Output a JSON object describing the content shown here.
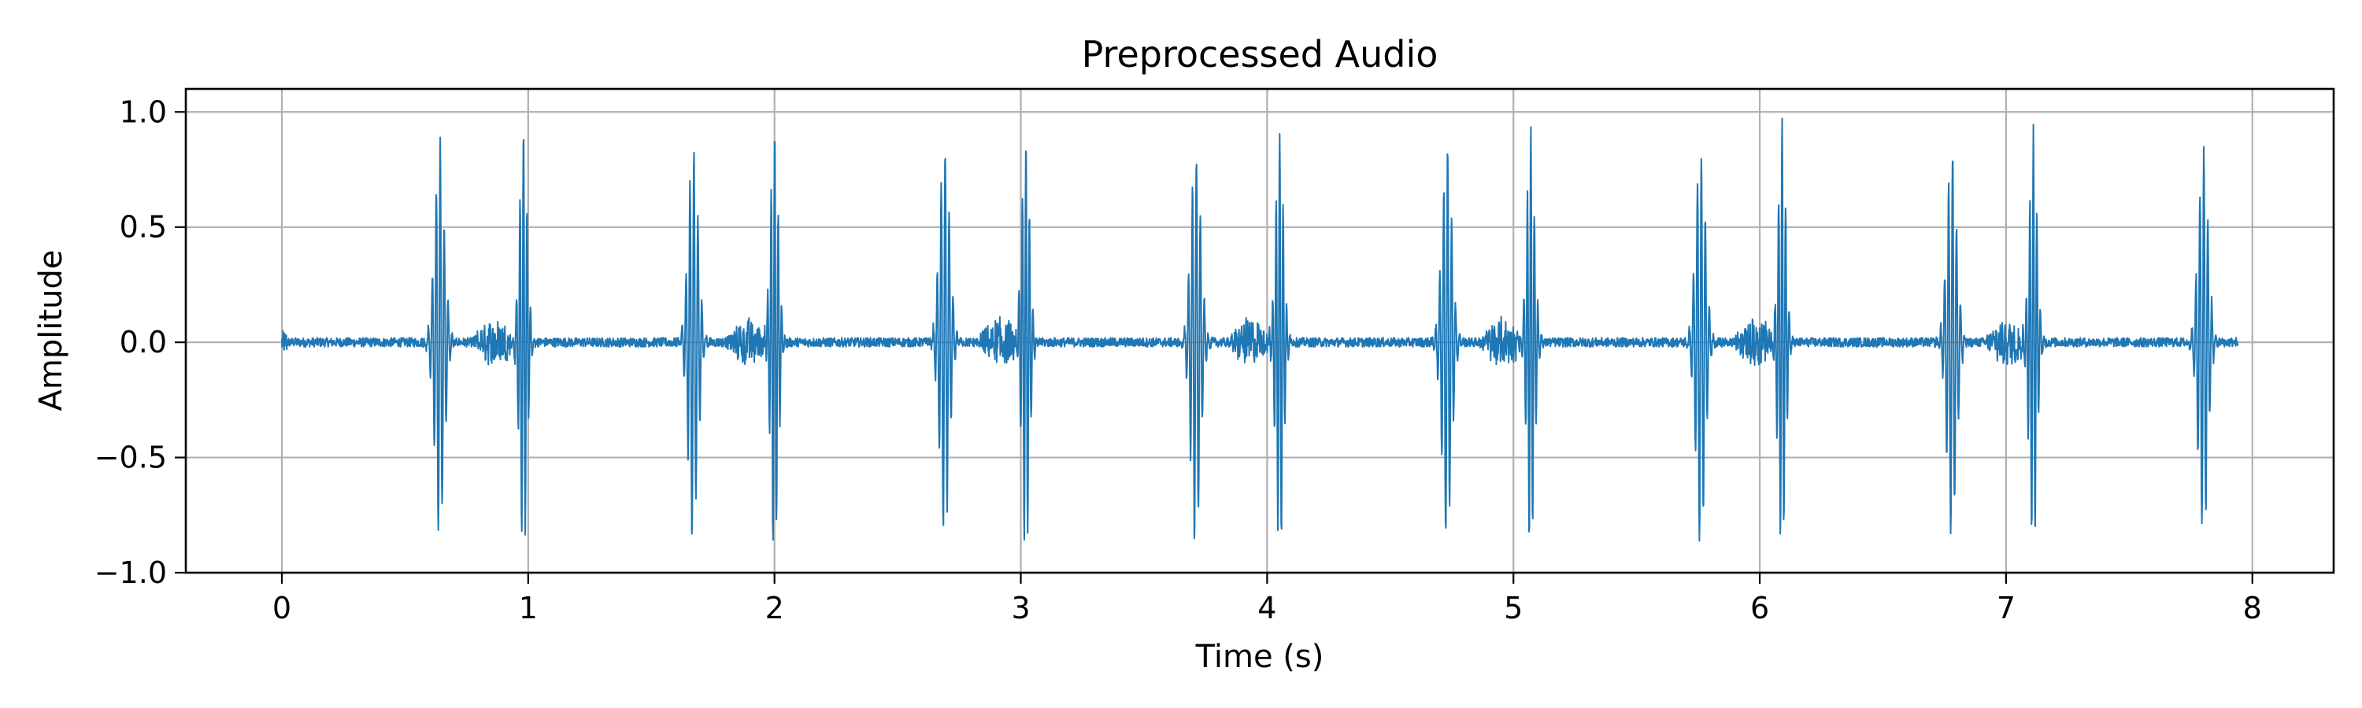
{
  "chart_data": {
    "type": "line",
    "title": "Preprocessed Audio",
    "xlabel": "Time (s)",
    "ylabel": "Amplitude",
    "xlim": [
      -0.39,
      8.33
    ],
    "ylim": [
      -1.0,
      1.1
    ],
    "xticks": [
      0,
      1,
      2,
      3,
      4,
      5,
      6,
      7,
      8
    ],
    "xtick_labels": [
      "0",
      "1",
      "2",
      "3",
      "4",
      "5",
      "6",
      "7",
      "8"
    ],
    "yticks": [
      -1.0,
      -0.5,
      0.0,
      0.5,
      1.0
    ],
    "ytick_labels": [
      "−1.0",
      "−0.5",
      "0.0",
      "0.5",
      "1.0"
    ],
    "grid": true,
    "series": [
      {
        "color": "#1f77b4",
        "duration": 7.94,
        "beat_period": 1.03,
        "s1_times": [
          0.64,
          1.67,
          2.69,
          3.71,
          4.73,
          5.76,
          6.78,
          7.8
        ],
        "s2_times": [
          0.98,
          2.0,
          3.02,
          4.05,
          5.07,
          6.09,
          7.11
        ],
        "peak_amplitude": 1.0,
        "min_amplitude": -0.9,
        "baseline_noise_amplitude": 0.02,
        "murmur_amplitude": 0.1
      }
    ]
  }
}
